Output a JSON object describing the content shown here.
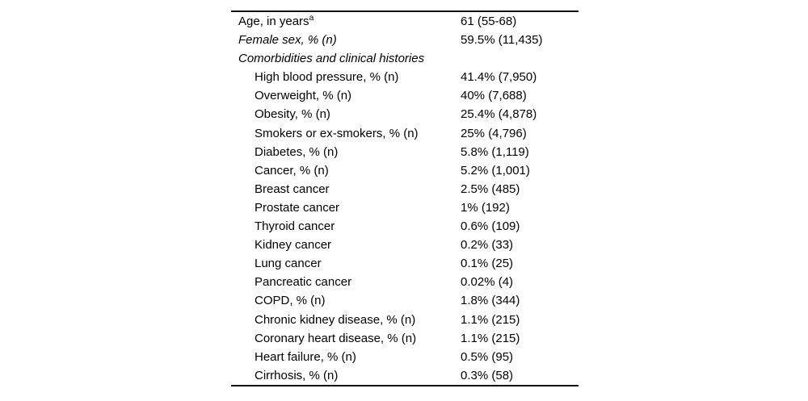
{
  "table": {
    "name": "patient-characteristics-table",
    "rows": [
      {
        "label": "Age, in years",
        "sup": "a",
        "value": "61 (55-68)",
        "indent": 0,
        "italic": false
      },
      {
        "label": "Female sex, % (n)",
        "value": "59.5% (11,435)",
        "indent": 0,
        "italic": true
      },
      {
        "label": "Comorbidities and clinical histories",
        "value": "",
        "indent": 0,
        "italic": true
      },
      {
        "label": "High blood pressure, % (n)",
        "value": "41.4% (7,950)",
        "indent": 1,
        "italic": false
      },
      {
        "label": "Overweight, % (n)",
        "value": "40% (7,688)",
        "indent": 1,
        "italic": false
      },
      {
        "label": "Obesity, % (n)",
        "value": "25.4% (4,878)",
        "indent": 1,
        "italic": false
      },
      {
        "label": "Smokers or ex-smokers, % (n)",
        "value": "25% (4,796)",
        "indent": 1,
        "italic": false
      },
      {
        "label": "Diabetes, % (n)",
        "value": "5.8% (1,119)",
        "indent": 1,
        "italic": false
      },
      {
        "label": "Cancer, % (n)",
        "value": "5.2% (1,001)",
        "indent": 1,
        "italic": false
      },
      {
        "label": "Breast cancer",
        "value": "2.5% (485)",
        "indent": 1,
        "italic": false
      },
      {
        "label": "Prostate cancer",
        "value": "1% (192)",
        "indent": 1,
        "italic": false
      },
      {
        "label": "Thyroid cancer",
        "value": "0.6% (109)",
        "indent": 1,
        "italic": false
      },
      {
        "label": "Kidney cancer",
        "value": "0.2% (33)",
        "indent": 1,
        "italic": false
      },
      {
        "label": "Lung cancer",
        "value": "0.1% (25)",
        "indent": 1,
        "italic": false
      },
      {
        "label": "Pancreatic cancer",
        "value": "0.02% (4)",
        "indent": 1,
        "italic": false
      },
      {
        "label": "COPD, % (n)",
        "value": "1.8% (344)",
        "indent": 1,
        "italic": false
      },
      {
        "label": "Chronic kidney disease, % (n)",
        "value": "1.1% (215)",
        "indent": 1,
        "italic": false
      },
      {
        "label": "Coronary heart disease, % (n)",
        "value": "1.1% (215)",
        "indent": 1,
        "italic": false
      },
      {
        "label": "Heart failure, % (n)",
        "value": "0.5% (95)",
        "indent": 1,
        "italic": false
      },
      {
        "label": "Cirrhosis, % (n)",
        "value": "0.3% (58)",
        "indent": 1,
        "italic": false
      }
    ]
  },
  "chart_data": {
    "type": "table",
    "title": "",
    "columns": [
      "Characteristic",
      "Value"
    ],
    "rows": [
      [
        "Age, in years (a)",
        "61 (55-68)"
      ],
      [
        "Female sex, % (n)",
        "59.5% (11,435)"
      ],
      [
        "Comorbidities and clinical histories",
        ""
      ],
      [
        "High blood pressure, % (n)",
        "41.4% (7,950)"
      ],
      [
        "Overweight, % (n)",
        "40% (7,688)"
      ],
      [
        "Obesity, % (n)",
        "25.4% (4,878)"
      ],
      [
        "Smokers or ex-smokers, % (n)",
        "25% (4,796)"
      ],
      [
        "Diabetes, % (n)",
        "5.8% (1,119)"
      ],
      [
        "Cancer, % (n)",
        "5.2% (1,001)"
      ],
      [
        "Breast cancer",
        "2.5% (485)"
      ],
      [
        "Prostate cancer",
        "1% (192)"
      ],
      [
        "Thyroid cancer",
        "0.6% (109)"
      ],
      [
        "Kidney cancer",
        "0.2% (33)"
      ],
      [
        "Lung cancer",
        "0.1% (25)"
      ],
      [
        "Pancreatic cancer",
        "0.02% (4)"
      ],
      [
        "COPD, % (n)",
        "1.8% (344)"
      ],
      [
        "Chronic kidney disease, % (n)",
        "1.1% (215)"
      ],
      [
        "Coronary heart disease, % (n)",
        "1.1% (215)"
      ],
      [
        "Heart failure, % (n)",
        "0.5% (95)"
      ],
      [
        "Cirrhosis, % (n)",
        "0.3% (58)"
      ]
    ]
  }
}
